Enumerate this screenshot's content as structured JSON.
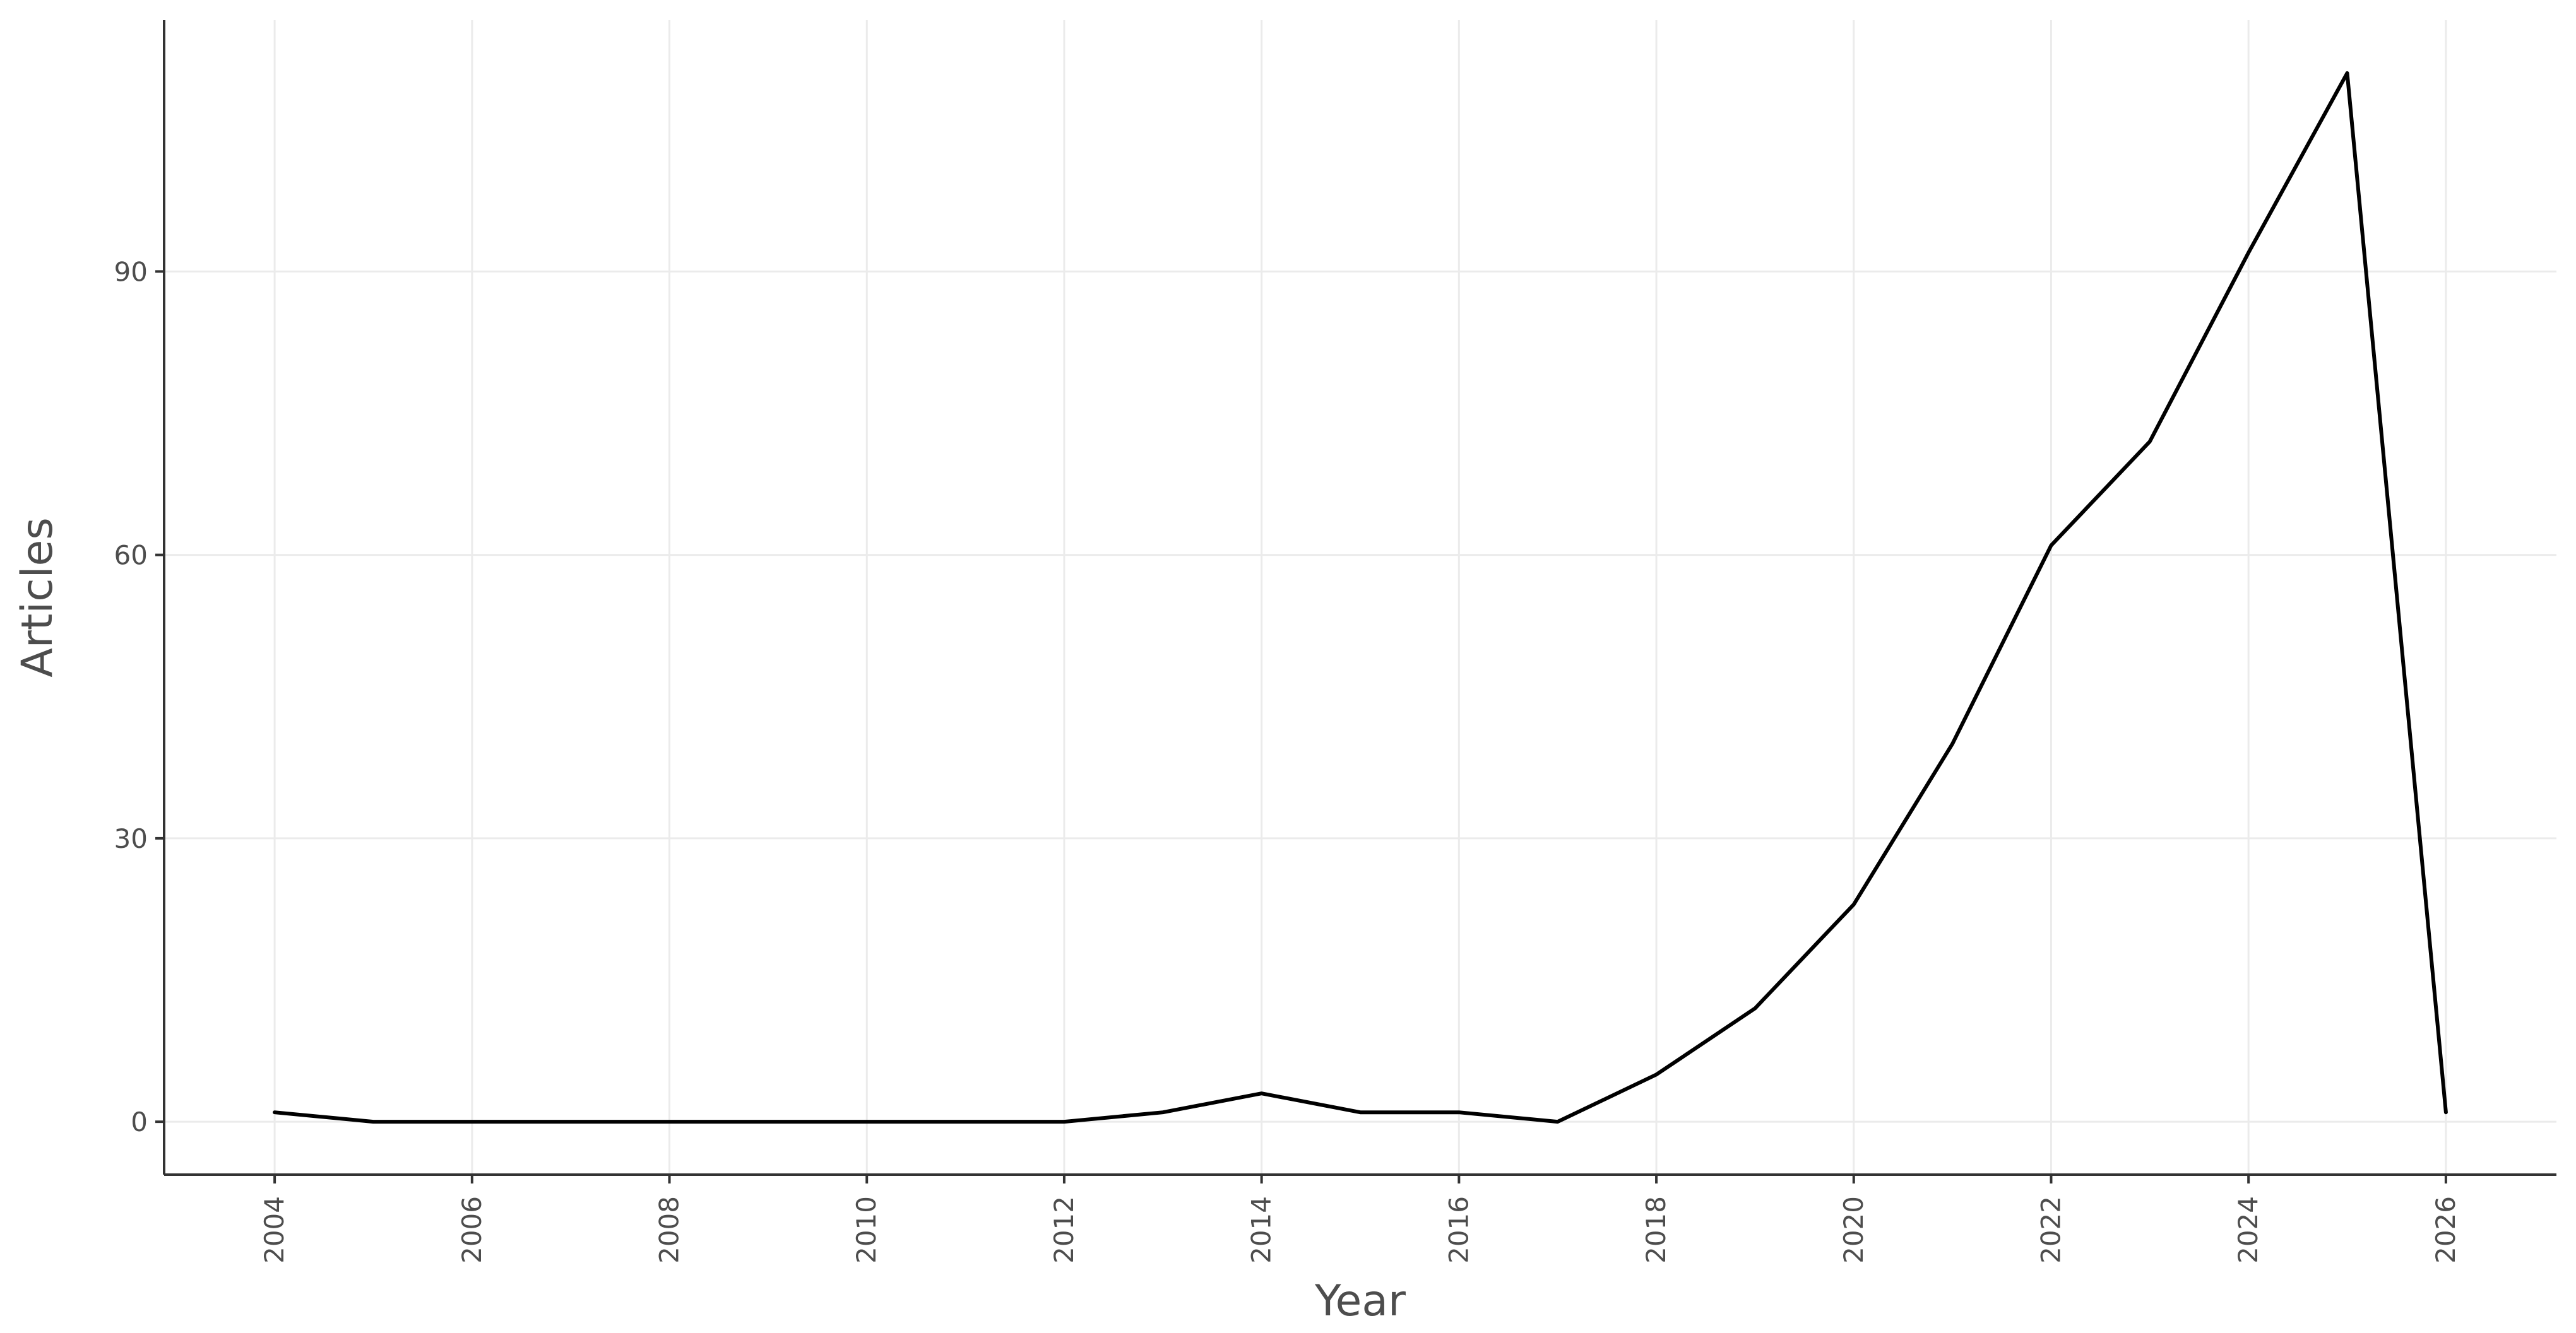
{
  "chart_data": {
    "type": "line",
    "title": "",
    "xlabel": "Year",
    "ylabel": "Articles",
    "xlim": [
      2002.88,
      2027.12
    ],
    "ylim": [
      -5.6,
      116.6
    ],
    "x_ticks": [
      2004,
      2006,
      2008,
      2010,
      2012,
      2014,
      2016,
      2018,
      2020,
      2022,
      2024,
      2026
    ],
    "x_tick_labels": [
      "2004",
      "2006",
      "2008",
      "2010",
      "2012",
      "2014",
      "2016",
      "2018",
      "2020",
      "2022",
      "2024",
      "2026"
    ],
    "y_ticks": [
      0,
      30,
      60,
      90
    ],
    "y_tick_labels": [
      "0",
      "30",
      "60",
      "90"
    ],
    "grid": true,
    "legend": "none",
    "series": [
      {
        "color": "#000000",
        "x": [
          2004,
          2005,
          2006,
          2007,
          2008,
          2009,
          2010,
          2011,
          2012,
          2013,
          2014,
          2015,
          2016,
          2017,
          2018,
          2019,
          2020,
          2021,
          2022,
          2023,
          2024,
          2025,
          2026
        ],
        "values": [
          1,
          0,
          0,
          0,
          0,
          0,
          0,
          0,
          0,
          1,
          3,
          1,
          1,
          0,
          5,
          12,
          23,
          40,
          61,
          72,
          92,
          111,
          1
        ]
      }
    ]
  }
}
